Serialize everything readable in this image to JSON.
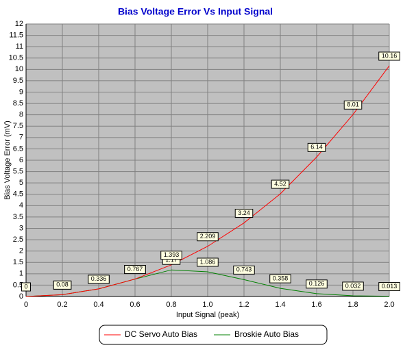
{
  "chart_data": {
    "type": "line",
    "title": "Bias Voltage Error Vs Input Signal",
    "x_label": "Input Signal (peak)",
    "y_label": "Bias Voltage Error (mV)",
    "x": [
      0,
      0.2,
      0.4,
      0.6,
      0.8,
      1.0,
      1.2,
      1.4,
      1.6,
      1.8,
      2.0
    ],
    "series": [
      {
        "name": "Broskie Auto Bias",
        "color": "#008000",
        "values": [
          0,
          0.08,
          0.336,
          0.767,
          1.17,
          1.086,
          0.743,
          0.358,
          0.126,
          0.032,
          0.013
        ]
      },
      {
        "name": "DC Servo Auto Bias",
        "color": "#ff0000",
        "values": [
          0,
          0.08,
          0.336,
          0.767,
          1.393,
          2.209,
          3.24,
          4.52,
          6.14,
          8.01,
          10.16
        ]
      }
    ],
    "xlim": [
      0,
      2
    ],
    "xticks": [
      0,
      0.2,
      0.4,
      0.6,
      0.8,
      {
        "value": 1,
        "label": "1.0"
      },
      1.2,
      1.4,
      1.6,
      1.8,
      {
        "value": 2,
        "label": "2.0"
      }
    ],
    "ylim": [
      0,
      12
    ],
    "yticks": [
      0,
      0.5,
      1,
      1.5,
      2,
      2.5,
      3,
      3.5,
      4,
      4.5,
      5,
      5.5,
      6,
      6.5,
      7,
      7.5,
      8,
      8.5,
      9,
      9.5,
      10,
      10.5,
      11,
      11.5,
      12
    ],
    "grid": true,
    "legend": "bottom"
  }
}
